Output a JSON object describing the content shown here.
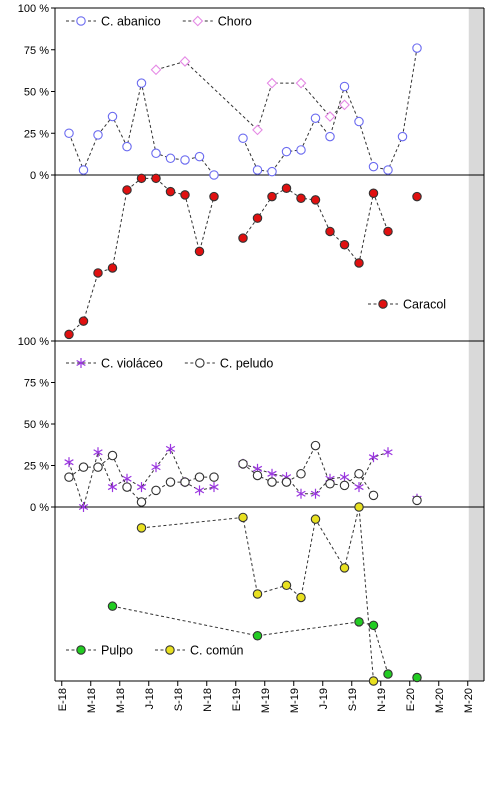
{
  "chart_data": {
    "type": "line",
    "x_tick_labels": [
      "E-18",
      "M-18",
      "M-18",
      "J-18",
      "S-18",
      "N-18",
      "E-19",
      "M-19",
      "M-19",
      "J-19",
      "S-19",
      "N-19",
      "E-20",
      "M-20",
      "M-20"
    ],
    "shaded_from_month": 28,
    "panels": [
      {
        "id": "panel1",
        "y_axis": "left",
        "ylim": [
          0,
          100
        ],
        "y_ticks": [
          "0 %",
          "25 %",
          "50 %",
          "75 %",
          "100 %"
        ],
        "y_tick_values": [
          0,
          25,
          50,
          75,
          100
        ],
        "legend_position": "top-left",
        "series": [
          {
            "name": "C. abanico",
            "color": "#6b6bf0",
            "marker": "circle",
            "filled": false,
            "line": "dashed",
            "points": [
              [
                0,
                25
              ],
              [
                1,
                3
              ],
              [
                2,
                24
              ],
              [
                3,
                35
              ],
              [
                4,
                17
              ],
              [
                5,
                55
              ],
              [
                6,
                13
              ],
              [
                7,
                10
              ],
              [
                8,
                9
              ],
              [
                9,
                11
              ],
              [
                10,
                0
              ],
              null,
              [
                12,
                22
              ],
              [
                13,
                3
              ],
              [
                14,
                2
              ],
              [
                15,
                14
              ],
              [
                16,
                15
              ],
              [
                17,
                34
              ],
              [
                18,
                23
              ],
              [
                19,
                53
              ],
              [
                20,
                32
              ],
              [
                21,
                5
              ],
              [
                22,
                3
              ],
              [
                23,
                23
              ],
              [
                24,
                76
              ]
            ]
          },
          {
            "name": "Choro",
            "color": "#e58ae5",
            "marker": "diamond",
            "filled": false,
            "line": "dashed",
            "points": [
              [
                6,
                63
              ],
              [
                8,
                68
              ],
              [
                13,
                27
              ],
              [
                14,
                55
              ],
              [
                16,
                55
              ],
              [
                18,
                35
              ],
              [
                19,
                42
              ]
            ]
          }
        ]
      },
      {
        "id": "panel2",
        "y_axis": "none",
        "ylim": [
          0,
          100
        ],
        "inverted": true,
        "y_ticks": [],
        "legend_position": "bottom-right",
        "series": [
          {
            "name": "Caracol",
            "color": "#e01010",
            "marker": "circle",
            "filled": true,
            "line": "dashed",
            "points": [
              [
                0,
                96
              ],
              [
                1,
                88
              ],
              [
                2,
                59
              ],
              [
                3,
                56
              ],
              [
                4,
                9
              ],
              [
                5,
                2
              ],
              [
                6,
                2
              ],
              [
                7,
                10
              ],
              [
                8,
                12
              ],
              [
                9,
                46
              ],
              [
                10,
                13
              ],
              null,
              [
                12,
                38
              ],
              [
                13,
                26
              ],
              [
                14,
                13
              ],
              [
                15,
                8
              ],
              [
                16,
                14
              ],
              [
                17,
                15
              ],
              [
                18,
                34
              ],
              [
                19,
                42
              ],
              [
                20,
                53
              ],
              [
                21,
                11
              ],
              [
                22,
                34
              ],
              null,
              [
                24,
                13
              ]
            ]
          }
        ]
      },
      {
        "id": "panel3",
        "y_axis": "left",
        "ylim": [
          0,
          100
        ],
        "y_ticks": [
          "0 %",
          "25 %",
          "50 %",
          "75 %",
          "100 %"
        ],
        "y_tick_values": [
          0,
          25,
          50,
          75,
          100
        ],
        "legend_position": "top-left",
        "series": [
          {
            "name": "C. violáceo",
            "color": "#9a36e0",
            "marker": "asterisk",
            "filled": false,
            "line": "dashed",
            "points": [
              [
                0,
                27
              ],
              [
                1,
                0
              ],
              [
                2,
                33
              ],
              [
                3,
                12
              ],
              [
                4,
                17
              ],
              [
                5,
                12
              ],
              [
                6,
                24
              ],
              [
                7,
                35
              ],
              [
                8,
                15
              ],
              [
                9,
                10
              ],
              [
                10,
                12
              ],
              null,
              [
                12,
                26
              ],
              [
                13,
                23
              ],
              [
                14,
                20
              ],
              [
                15,
                18
              ],
              [
                16,
                8
              ],
              [
                17,
                8
              ],
              [
                18,
                17
              ],
              [
                19,
                18
              ],
              [
                20,
                12
              ],
              [
                21,
                30
              ],
              [
                22,
                33
              ],
              null,
              [
                24,
                5
              ]
            ]
          },
          {
            "name": "C. peludo",
            "color": "#333333",
            "marker": "circle",
            "filled": false,
            "line": "dashed",
            "points": [
              [
                0,
                18
              ],
              [
                1,
                24
              ],
              [
                2,
                24
              ],
              [
                3,
                31
              ],
              [
                4,
                12
              ],
              [
                5,
                3
              ],
              [
                6,
                10
              ],
              [
                7,
                15
              ],
              [
                8,
                15
              ],
              [
                9,
                18
              ],
              [
                10,
                18
              ],
              null,
              [
                12,
                26
              ],
              [
                13,
                19
              ],
              [
                14,
                15
              ],
              [
                15,
                15
              ],
              [
                16,
                20
              ],
              [
                17,
                37
              ],
              [
                18,
                14
              ],
              [
                19,
                13
              ],
              [
                20,
                20
              ],
              [
                21,
                7
              ],
              null,
              null,
              [
                24,
                4
              ]
            ]
          }
        ]
      },
      {
        "id": "panel4",
        "y_axis": "none",
        "ylim": [
          0,
          100
        ],
        "inverted": true,
        "y_ticks": [],
        "legend_position": "bottom-left",
        "series": [
          {
            "name": "Pulpo",
            "color": "#22cc22",
            "marker": "circle",
            "filled": true,
            "line": "dashed",
            "points": [
              [
                3,
                57
              ],
              [
                13,
                74
              ],
              [
                20,
                66
              ],
              [
                21,
                68
              ],
              [
                22,
                96
              ],
              null,
              [
                24,
                98
              ]
            ]
          },
          {
            "name": "C. común",
            "color": "#e8e020",
            "marker": "circle",
            "filled": true,
            "line": "dashed",
            "points": [
              [
                5,
                12
              ],
              [
                12,
                6
              ],
              [
                13,
                50
              ],
              [
                15,
                45
              ],
              [
                16,
                52
              ],
              [
                17,
                7
              ],
              [
                19,
                35
              ],
              [
                20,
                0
              ],
              [
                21,
                100
              ]
            ]
          }
        ]
      }
    ]
  }
}
